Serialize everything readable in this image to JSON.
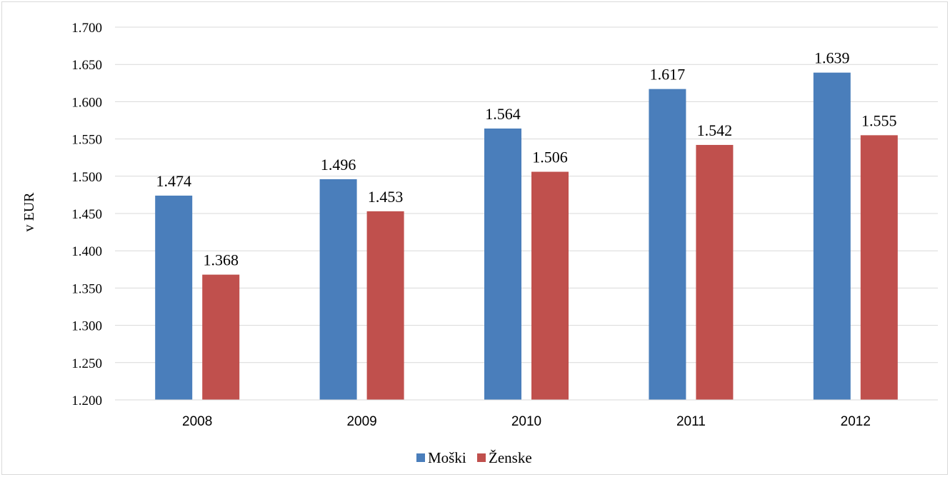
{
  "chart_data": {
    "type": "bar",
    "categories": [
      "2008",
      "2009",
      "2010",
      "2011",
      "2012"
    ],
    "series": [
      {
        "name": "Moški",
        "values": [
          1474,
          1496,
          1564,
          1617,
          1639
        ],
        "labels": [
          "1.474",
          "1.496",
          "1.564",
          "1.617",
          "1.639"
        ],
        "color": "#4a7ebb"
      },
      {
        "name": "Ženske",
        "values": [
          1368,
          1453,
          1506,
          1542,
          1555
        ],
        "labels": [
          "1.368",
          "1.453",
          "1.506",
          "1.542",
          "1.555"
        ],
        "color": "#c0504d"
      }
    ],
    "ylabel": "v EUR",
    "ylim": [
      1200,
      1700
    ],
    "yticks": [
      1200,
      1250,
      1300,
      1350,
      1400,
      1450,
      1500,
      1550,
      1600,
      1650,
      1700
    ],
    "ytick_labels": [
      "1.200",
      "1.250",
      "1.300",
      "1.350",
      "1.400",
      "1.450",
      "1.500",
      "1.550",
      "1.600",
      "1.650",
      "1.700"
    ],
    "grid": true,
    "gridline_color": "#d9d9d9",
    "legend": "bottom-center"
  }
}
